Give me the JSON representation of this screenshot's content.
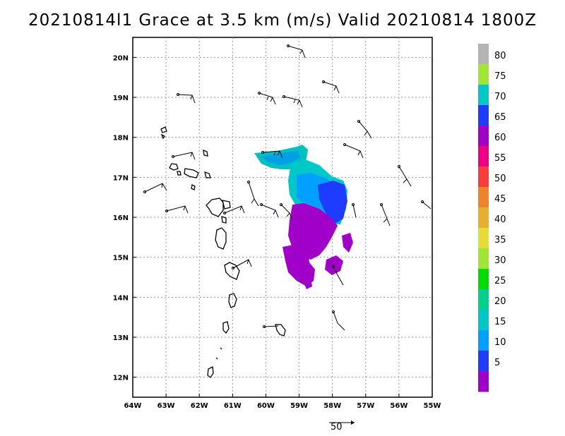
{
  "title": "20210814l1 Grace at 3.5 km (m/s) Valid 20210814 1800Z",
  "axes": {
    "lon_ticks": [
      "64W",
      "63W",
      "62W",
      "61W",
      "60W",
      "59W",
      "58W",
      "57W",
      "56W",
      "55W"
    ],
    "lat_ticks": [
      "20N",
      "19N",
      "18N",
      "17N",
      "16N",
      "15N",
      "14N",
      "13N",
      "12N"
    ]
  },
  "colorbar": {
    "labels": [
      "5",
      "10",
      "15",
      "20",
      "25",
      "30",
      "35",
      "40",
      "45",
      "50",
      "55",
      "60",
      "65",
      "70",
      "75",
      "80"
    ],
    "colors": [
      "#a000c8",
      "#1e3cff",
      "#00a0ff",
      "#00c8c8",
      "#00d28c",
      "#00dc00",
      "#a0e632",
      "#e6dc32",
      "#e6af2d",
      "#f08228",
      "#fa3c3c",
      "#f00082",
      "#a000c8",
      "#1e3cff",
      "#00c8c8",
      "#a0e632",
      "#b4b4b4"
    ]
  },
  "reference_vector": {
    "label": "50"
  },
  "chart_data": {
    "type": "map",
    "title": "20210814l1 Grace at 3.5 km (m/s) Valid 20210814 1800Z",
    "lon_range": [
      -64,
      -55
    ],
    "lat_range": [
      11.5,
      20.5
    ],
    "colorbar_range": [
      0,
      85
    ],
    "grid": true
  }
}
